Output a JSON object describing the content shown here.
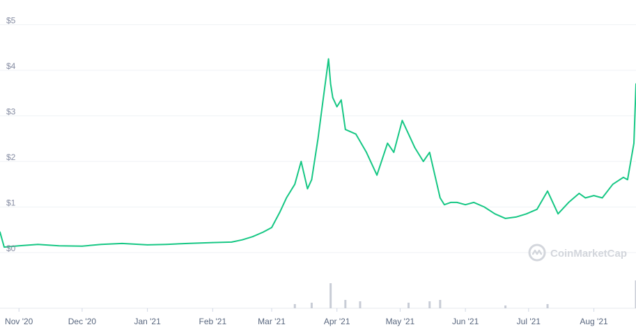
{
  "chart_data": {
    "type": "line",
    "title": "",
    "xlabel": "",
    "ylabel": "",
    "ylim": [
      0,
      5
    ],
    "y_ticks": [
      "$0",
      "$1",
      "$2",
      "$3",
      "$4",
      "$5"
    ],
    "x_ticks": [
      "Nov '20",
      "Dec '20",
      "Jan '21",
      "Feb '21",
      "Mar '21",
      "Apr '21",
      "May '21",
      "Jun '21",
      "Jul '21",
      "Aug '21"
    ],
    "grid": true,
    "line_color": "#16c784",
    "volume_color": "#c8ccd6",
    "series": [
      {
        "name": "",
        "x": [
          "2020-10-23",
          "2020-10-25",
          "2020-11-01",
          "2020-11-10",
          "2020-11-20",
          "2020-12-01",
          "2020-12-10",
          "2020-12-20",
          "2021-01-01",
          "2021-01-10",
          "2021-01-20",
          "2021-02-01",
          "2021-02-10",
          "2021-02-15",
          "2021-02-20",
          "2021-02-25",
          "2021-03-01",
          "2021-03-05",
          "2021-03-08",
          "2021-03-12",
          "2021-03-15",
          "2021-03-18",
          "2021-03-20",
          "2021-03-23",
          "2021-03-25",
          "2021-03-28",
          "2021-03-29",
          "2021-03-30",
          "2021-04-01",
          "2021-04-03",
          "2021-04-05",
          "2021-04-10",
          "2021-04-15",
          "2021-04-20",
          "2021-04-25",
          "2021-04-28",
          "2021-05-02",
          "2021-05-05",
          "2021-05-08",
          "2021-05-12",
          "2021-05-15",
          "2021-05-20",
          "2021-05-22",
          "2021-05-25",
          "2021-05-28",
          "2021-06-01",
          "2021-06-05",
          "2021-06-10",
          "2021-06-15",
          "2021-06-20",
          "2021-06-25",
          "2021-06-30",
          "2021-07-05",
          "2021-07-10",
          "2021-07-15",
          "2021-07-20",
          "2021-07-25",
          "2021-07-28",
          "2021-08-01",
          "2021-08-05",
          "2021-08-10",
          "2021-08-15",
          "2021-08-17",
          "2021-08-20",
          "2021-08-21"
        ],
        "values": [
          0.45,
          0.12,
          0.15,
          0.18,
          0.15,
          0.14,
          0.18,
          0.2,
          0.17,
          0.18,
          0.2,
          0.22,
          0.23,
          0.28,
          0.35,
          0.45,
          0.55,
          0.9,
          1.2,
          1.5,
          2.0,
          1.4,
          1.6,
          2.5,
          3.2,
          4.25,
          3.7,
          3.4,
          3.2,
          3.35,
          2.7,
          2.6,
          2.2,
          1.7,
          2.4,
          2.2,
          2.9,
          2.6,
          2.3,
          2.0,
          2.2,
          1.2,
          1.05,
          1.1,
          1.1,
          1.05,
          1.1,
          1.0,
          0.85,
          0.75,
          0.78,
          0.85,
          0.95,
          1.35,
          0.85,
          1.1,
          1.3,
          1.2,
          1.25,
          1.2,
          1.5,
          1.65,
          1.6,
          2.4,
          3.7
        ]
      }
    ],
    "volume": {
      "x": [
        "2021-03-12",
        "2021-03-20",
        "2021-03-29",
        "2021-04-05",
        "2021-04-12",
        "2021-05-05",
        "2021-05-15",
        "2021-05-20",
        "2021-06-20",
        "2021-07-10",
        "2021-08-21"
      ],
      "values": [
        0.15,
        0.2,
        0.9,
        0.3,
        0.25,
        0.2,
        0.25,
        0.3,
        0.1,
        0.15,
        1.0
      ]
    }
  },
  "watermark": {
    "text": "CoinMarketCap",
    "icon": "coinmarketcap-logo-icon"
  }
}
